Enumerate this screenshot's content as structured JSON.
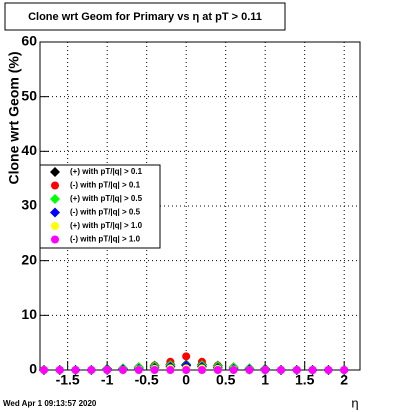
{
  "chart_data": {
    "type": "scatter",
    "title": "Clone wrt Geom for Primary vs   η at pT > 0.11",
    "x_label": "η",
    "y_label": "Clone wrt Geom (%)",
    "footer": "Wed Apr  1 09:13:57 2020",
    "x": [
      -1.8,
      -1.6,
      -1.4,
      -1.2,
      -1.0,
      -0.8,
      -0.6,
      -0.4,
      -0.2,
      0,
      0.2,
      0.4,
      0.6,
      0.8,
      1.0,
      1.2,
      1.4,
      1.6,
      1.8,
      2.0
    ],
    "series": [
      {
        "name": "(+) with pT/|q| > 0.1",
        "color": "#000000",
        "marker": "diamond",
        "values": [
          0,
          0,
          0,
          0,
          0.2,
          0.3,
          0.5,
          0.8,
          1.0,
          1.0,
          1.0,
          0.8,
          0.5,
          0.3,
          0.2,
          0,
          0,
          0,
          0,
          0
        ]
      },
      {
        "name": "(-) with pT/|q| > 0.1",
        "color": "#ff0000",
        "marker": "circle",
        "values": [
          0,
          0,
          0,
          0,
          0,
          0.2,
          0.4,
          0.8,
          1.5,
          2.5,
          1.5,
          0.8,
          0.4,
          0.2,
          0,
          0,
          0,
          0,
          0,
          0
        ]
      },
      {
        "name": "(+) with pT/|q| > 0.5",
        "color": "#00ff00",
        "marker": "diamond",
        "values": [
          0,
          0,
          0,
          0,
          0.1,
          0.3,
          0.5,
          0.7,
          0.9,
          0.9,
          0.9,
          0.7,
          0.5,
          0.3,
          0.1,
          0,
          0,
          0,
          0,
          0
        ]
      },
      {
        "name": "(-) with pT/|q| > 0.5",
        "color": "#0000ff",
        "marker": "diamond",
        "values": [
          0,
          0,
          0,
          0,
          0,
          0.1,
          0.2,
          0.4,
          0.6,
          0.8,
          0.6,
          0.4,
          0.2,
          0.1,
          0,
          0,
          0,
          0,
          0,
          0
        ]
      },
      {
        "name": "(+) with pT/|q| > 1.0",
        "color": "#ffff00",
        "marker": "circle",
        "values": [
          0,
          0,
          0,
          0,
          0,
          0,
          0.1,
          0.2,
          0.3,
          0.3,
          0.3,
          0.2,
          0.1,
          0,
          0,
          0,
          0,
          0,
          0,
          0
        ]
      },
      {
        "name": "(-) with pT/|q| > 1.0",
        "color": "#ff00ff",
        "marker": "circle",
        "values": [
          0,
          0,
          0,
          0,
          0,
          0,
          0,
          0,
          0,
          0,
          0,
          0,
          0,
          0,
          0,
          0,
          0,
          0,
          0,
          0
        ]
      }
    ],
    "xlim": [
      -1.85,
      2.2
    ],
    "ylim": [
      0,
      60
    ],
    "xticks": [
      -1.5,
      -1,
      -0.5,
      0,
      0.5,
      1,
      1.5,
      2
    ],
    "yticks": [
      0,
      10,
      20,
      30,
      40,
      50,
      60
    ],
    "grid": true
  }
}
